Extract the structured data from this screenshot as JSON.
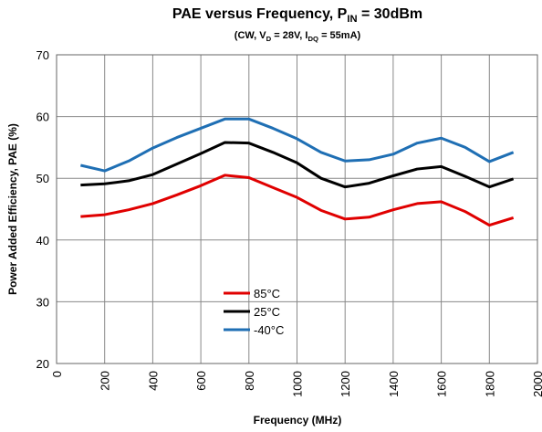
{
  "chart_data": {
    "type": "line",
    "title": [
      "PAE versus Frequency, P",
      "IN",
      " = 30dBm"
    ],
    "subtitle": [
      "(CW, V",
      "D",
      " = 28V, I",
      "DQ",
      " = 55mA)"
    ],
    "x_label": "Frequency (MHz)",
    "y_label": "Power Added  Efficiency, PAE (%)",
    "x": [
      100,
      200,
      300,
      400,
      500,
      600,
      700,
      800,
      900,
      1000,
      1100,
      1200,
      1300,
      1400,
      1500,
      1600,
      1700,
      1800,
      1900
    ],
    "series": [
      {
        "name": "85°C",
        "color": "#e00000",
        "values": [
          43.8,
          44.1,
          44.9,
          45.9,
          47.3,
          48.8,
          50.5,
          50.1,
          48.5,
          46.9,
          44.8,
          43.4,
          43.7,
          44.9,
          45.9,
          46.2,
          44.6,
          42.4,
          43.6
        ]
      },
      {
        "name": "25°C",
        "color": "#000000",
        "values": [
          48.9,
          49.1,
          49.6,
          50.6,
          52.3,
          54.0,
          55.8,
          55.7,
          54.2,
          52.5,
          50.0,
          48.6,
          49.2,
          50.4,
          51.5,
          51.9,
          50.3,
          48.6,
          49.9
        ]
      },
      {
        "name": "-40°C",
        "color": "#1f6fb4",
        "values": [
          52.1,
          51.2,
          52.8,
          54.9,
          56.6,
          58.1,
          59.6,
          59.6,
          58.1,
          56.4,
          54.2,
          52.8,
          53.0,
          53.9,
          55.7,
          56.5,
          55.0,
          52.7,
          54.2
        ]
      }
    ],
    "xlim": [
      0,
      2000
    ],
    "xticks": [
      0,
      200,
      400,
      600,
      800,
      1000,
      1200,
      1400,
      1600,
      1800,
      2000
    ],
    "ylim": [
      20,
      70
    ],
    "yticks": [
      20,
      30,
      40,
      50,
      60,
      70
    ],
    "grid": true
  }
}
